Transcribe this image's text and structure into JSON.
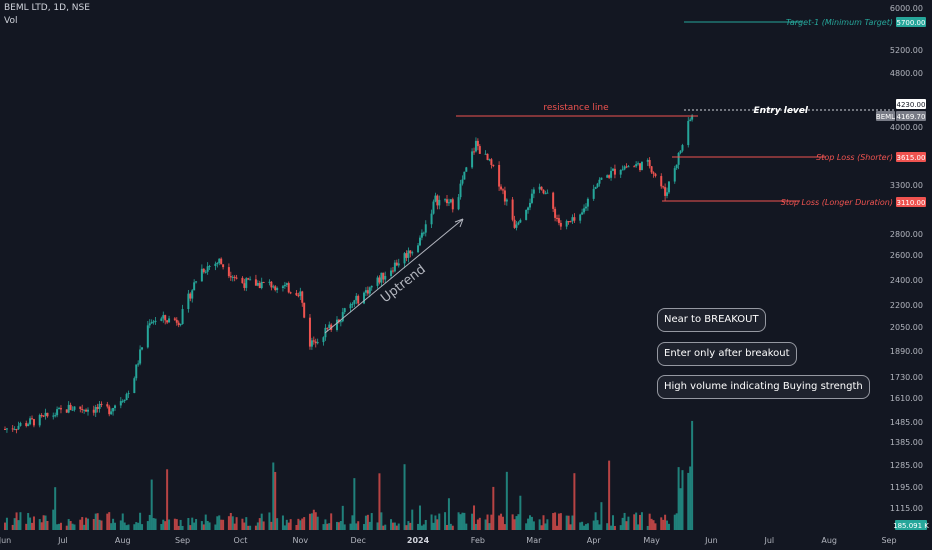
{
  "header": {
    "symbol_line": "BEML LTD, 1D, NSE",
    "vol_label": "Vol"
  },
  "colors": {
    "up": "#26a69a",
    "down": "#ef5350",
    "bg": "#131722",
    "text": "#b2b5be",
    "target": "#26a69a",
    "stop": "#ef5350"
  },
  "annotations": {
    "uptrend": "Uptrend",
    "resistance": "resistance line",
    "entry": "Entry level",
    "target": "Target-1 (Minimum Target)",
    "stop_short": "Stop Loss (Shorter)",
    "stop_long": "Stop Loss (Longer Duration)"
  },
  "notes": [
    "Near to BREAKOUT",
    "Enter only after breakout",
    "High volume indicating Buying strength"
  ],
  "chart_data": {
    "type": "candlestick",
    "title": "BEML LTD, 1D, NSE",
    "y_axis_labels": [
      "6000.00",
      "5200.00",
      "4800.00",
      "4000.00",
      "3300.00",
      "2800.00",
      "2600.00",
      "2400.00",
      "2200.00",
      "2050.00",
      "1890.00",
      "1730.00",
      "1610.00",
      "1485.00",
      "1385.00",
      "1285.00",
      "1195.00",
      "1115.00"
    ],
    "x_axis_labels": [
      "Jun",
      "Jul",
      "Aug",
      "Sep",
      "Oct",
      "Nov",
      "Dec",
      "2024",
      "Feb",
      "Mar",
      "Apr",
      "May",
      "Jun",
      "Jul",
      "Aug",
      "Sep"
    ],
    "price_tags": [
      {
        "label": "5700.00",
        "value": 5700,
        "kind": "target"
      },
      {
        "label": "4230.00",
        "value": 4230,
        "kind": "entry"
      },
      {
        "label": "BEML",
        "value": 4169.7,
        "kind": "symbol"
      },
      {
        "label": "4169.70",
        "value": 4169.7,
        "kind": "last"
      },
      {
        "label": "3615.00",
        "value": 3615,
        "kind": "stop"
      },
      {
        "label": "3110.00",
        "value": 3110,
        "kind": "stop"
      }
    ],
    "volume_tag": "185.091 K",
    "levels": {
      "target": 5700,
      "resistance": 4230,
      "entry": 4230,
      "stop_short": 3615,
      "stop_long": 3110
    },
    "close_path": [
      {
        "date": "2023-06-01",
        "close": 1450
      },
      {
        "date": "2023-06-20",
        "close": 1500
      },
      {
        "date": "2023-07-05",
        "close": 1560
      },
      {
        "date": "2023-07-25",
        "close": 1550
      },
      {
        "date": "2023-08-05",
        "close": 1650
      },
      {
        "date": "2023-08-15",
        "close": 2100
      },
      {
        "date": "2023-08-31",
        "close": 2100
      },
      {
        "date": "2023-09-10",
        "close": 2480
      },
      {
        "date": "2023-09-20",
        "close": 2550
      },
      {
        "date": "2023-10-01",
        "close": 2380
      },
      {
        "date": "2023-10-20",
        "close": 2360
      },
      {
        "date": "2023-11-01",
        "close": 2300
      },
      {
        "date": "2023-11-05",
        "close": 1930
      },
      {
        "date": "2023-11-15",
        "close": 2030
      },
      {
        "date": "2023-12-01",
        "close": 2250
      },
      {
        "date": "2023-12-15",
        "close": 2450
      },
      {
        "date": "2024-01-01",
        "close": 2700
      },
      {
        "date": "2024-01-10",
        "close": 3150
      },
      {
        "date": "2024-01-20",
        "close": 3100
      },
      {
        "date": "2024-01-31",
        "close": 3800
      },
      {
        "date": "2024-02-10",
        "close": 3450
      },
      {
        "date": "2024-02-20",
        "close": 2900
      },
      {
        "date": "2024-02-28",
        "close": 3150
      },
      {
        "date": "2024-03-05",
        "close": 3300
      },
      {
        "date": "2024-03-15",
        "close": 2880
      },
      {
        "date": "2024-03-25",
        "close": 2950
      },
      {
        "date": "2024-04-01",
        "close": 3300
      },
      {
        "date": "2024-04-15",
        "close": 3520
      },
      {
        "date": "2024-04-30",
        "close": 3550
      },
      {
        "date": "2024-05-08",
        "close": 3200
      },
      {
        "date": "2024-05-15",
        "close": 3650
      },
      {
        "date": "2024-05-22",
        "close": 4169.7
      }
    ]
  }
}
